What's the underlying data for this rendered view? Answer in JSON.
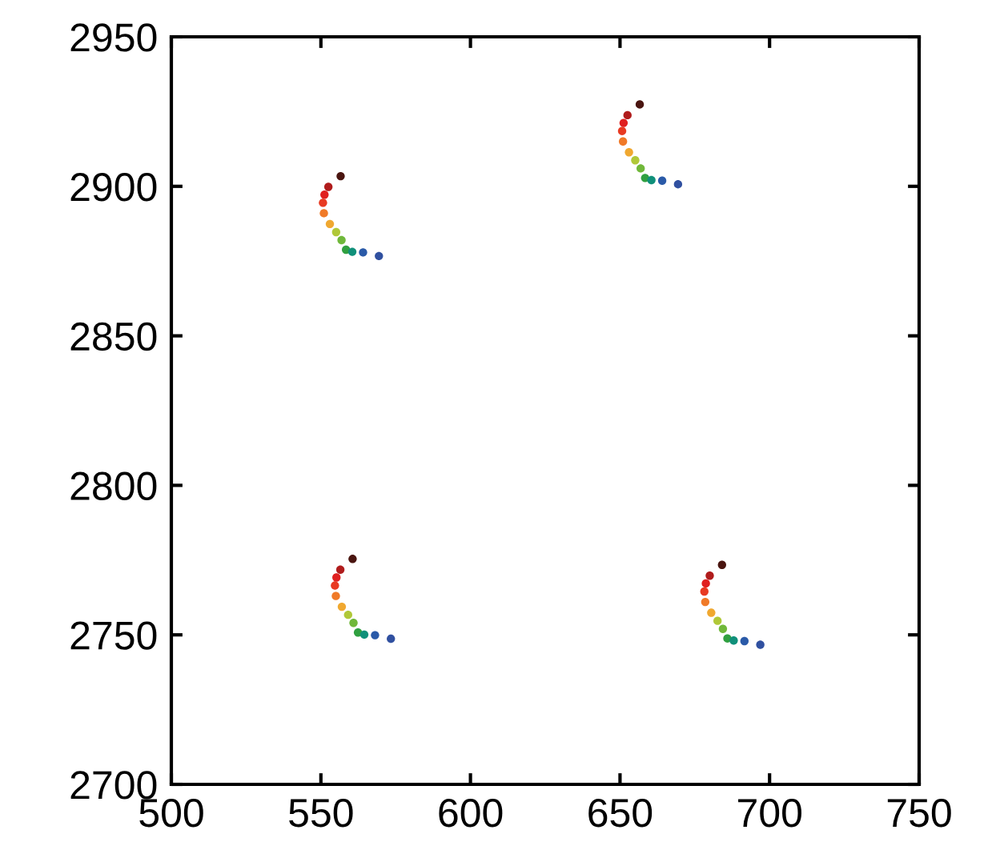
{
  "chart_data": {
    "type": "scatter",
    "xlim": [
      500,
      750
    ],
    "ylim": [
      2700,
      2950
    ],
    "xticks": [
      500,
      550,
      600,
      650,
      700,
      750
    ],
    "yticks": [
      2700,
      2750,
      2800,
      2850,
      2900,
      2950
    ],
    "grid": false,
    "legend": false,
    "marker": "circle",
    "series": [
      {
        "x": [
          556.6,
          552.5,
          551.2,
          550.7,
          551.0,
          553.0,
          555.1,
          556.9,
          558.4,
          560.5,
          564.1,
          569.4
        ],
        "values": [
          2903.4,
          2899.8,
          2897.2,
          2894.5,
          2891.0,
          2887.4,
          2884.7,
          2882.0,
          2878.8,
          2878.1,
          2877.9,
          2876.7
        ],
        "colors": [
          "#4a1510",
          "#b01c1c",
          "#e02020",
          "#e83a22",
          "#f07a28",
          "#f0a830",
          "#b0c838",
          "#70b83a",
          "#30a040",
          "#10907a",
          "#2a5aa8",
          "#3050a0"
        ]
      },
      {
        "x": [
          656.6,
          652.5,
          651.2,
          650.7,
          651.0,
          653.0,
          655.1,
          656.9,
          658.4,
          660.5,
          664.1,
          669.4
        ],
        "values": [
          2927.4,
          2923.8,
          2921.2,
          2918.5,
          2915.0,
          2911.4,
          2908.7,
          2906.0,
          2902.8,
          2902.1,
          2901.9,
          2900.7
        ],
        "colors": [
          "#4a1510",
          "#b01c1c",
          "#e02020",
          "#e83a22",
          "#f07a28",
          "#f0a830",
          "#b0c838",
          "#70b83a",
          "#30a040",
          "#10907a",
          "#2a5aa8",
          "#3050a0"
        ]
      },
      {
        "x": [
          560.6,
          556.5,
          555.2,
          554.7,
          555.0,
          557.0,
          559.1,
          560.9,
          562.4,
          564.5,
          568.1,
          573.4
        ],
        "values": [
          2775.4,
          2771.8,
          2769.2,
          2766.5,
          2763.0,
          2759.4,
          2756.7,
          2754.0,
          2750.8,
          2750.1,
          2749.9,
          2748.7
        ],
        "colors": [
          "#4a1510",
          "#b01c1c",
          "#e02020",
          "#e83a22",
          "#f07a28",
          "#f0a830",
          "#b0c838",
          "#70b83a",
          "#30a040",
          "#10907a",
          "#2a5aa8",
          "#3050a0"
        ]
      },
      {
        "x": [
          684.1,
          680.0,
          678.7,
          678.2,
          678.5,
          680.5,
          682.6,
          684.4,
          685.9,
          688.0,
          691.6,
          696.9
        ],
        "values": [
          2773.4,
          2769.8,
          2767.2,
          2764.5,
          2761.0,
          2757.4,
          2754.7,
          2752.0,
          2748.8,
          2748.1,
          2747.9,
          2746.7
        ],
        "colors": [
          "#4a1510",
          "#b01c1c",
          "#e02020",
          "#e83a22",
          "#f07a28",
          "#f0a830",
          "#b0c838",
          "#70b83a",
          "#30a040",
          "#10907a",
          "#2a5aa8",
          "#3050a0"
        ]
      }
    ]
  }
}
